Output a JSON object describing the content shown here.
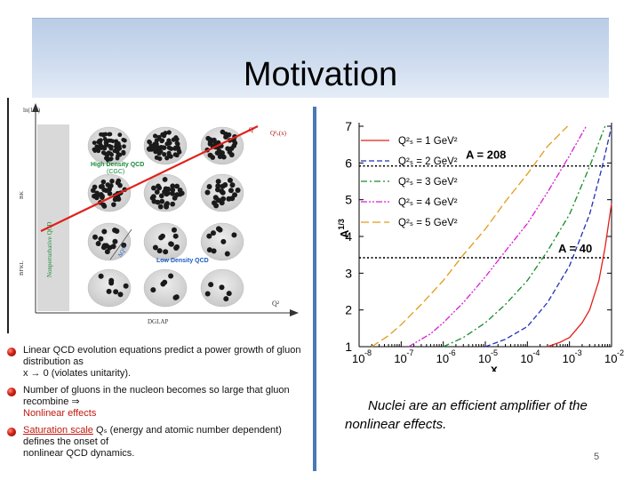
{
  "slide": {
    "title": "Motivation",
    "page_number": "5",
    "note_line1": "Nuclei are an efficient amplifier of the",
    "note_line2": "nonlinear effects.",
    "accent_color": "#4a78b8"
  },
  "left_figure": {
    "y_axis_label": "ln(1/x)",
    "x_axis_label": "Q²",
    "side_labels": [
      "BK",
      "BFKL"
    ],
    "bottom_label": "DGLAP",
    "qs_label": "Q²ₛ(x)",
    "nonpert_label": "Nonperturbative QCD",
    "high_density_label_1": "High Density QCD",
    "high_density_label_2": "(CGC)",
    "low_density_label": "Low Density QCD",
    "arrow_label": "ΔQ²/²",
    "q_label": "Q"
  },
  "bullets": [
    {
      "part1": "Linear QCD evolution equations predict a power growth of gluon distribution as",
      "part2": "x → 0",
      "part3": " (violates unitarity)."
    },
    {
      "part1": "Number of gluons in the nucleon becomes so large that gluon recombine ⇒",
      "part2": "Nonlinear effects"
    },
    {
      "part1": "Saturation scale",
      "part2": " Qₛ (energy and atomic number dependent) defines the onset of",
      "part3": "nonlinear QCD dynamics."
    }
  ],
  "chart_data": {
    "type": "line",
    "xscale": "log",
    "xlabel": "x",
    "ylabel": "A^1/3",
    "xlim": [
      1e-08,
      0.01
    ],
    "ylim": [
      1,
      7
    ],
    "x_tick_labels": [
      "10",
      "10",
      "10",
      "10",
      "10",
      "10",
      "10"
    ],
    "x_tick_exponents": [
      "-8",
      "-7",
      "-6",
      "-5",
      "-4",
      "-3",
      "-2"
    ],
    "y_tick_labels": [
      "1",
      "2",
      "3",
      "4",
      "5",
      "6",
      "7"
    ],
    "reference_lines": [
      {
        "label": "A = 208",
        "y": 5.92
      },
      {
        "label": "A = 40",
        "y": 3.42
      }
    ],
    "series": [
      {
        "name": "Q²ₛ = 1 GeV²",
        "color": "#e0201a",
        "dash": "solid",
        "x": [
          0.0003,
          0.0006,
          0.001,
          0.002,
          0.003,
          0.005,
          0.007,
          0.01
        ],
        "y": [
          1.0,
          1.12,
          1.25,
          1.65,
          2.0,
          2.8,
          3.7,
          4.9
        ]
      },
      {
        "name": "Q²ₛ = 2 GeV²",
        "color": "#2330b8",
        "dash": "dashed",
        "x": [
          1e-05,
          3e-05,
          0.0001,
          0.0003,
          0.001,
          0.003,
          0.006,
          0.01
        ],
        "y": [
          1.0,
          1.2,
          1.55,
          2.2,
          3.2,
          4.6,
          5.9,
          7.0
        ]
      },
      {
        "name": "Q²ₛ = 3 GeV²",
        "color": "#1a8c2a",
        "dash": "dashdot",
        "x": [
          1e-06,
          3e-06,
          1e-05,
          3e-05,
          0.0001,
          0.0003,
          0.001,
          0.003,
          0.007
        ],
        "y": [
          1.0,
          1.25,
          1.65,
          2.15,
          2.8,
          3.6,
          4.6,
          5.9,
          7.0
        ]
      },
      {
        "name": "Q²ₛ = 4 GeV²",
        "color": "#d61fd6",
        "dash": "dashdotdot",
        "x": [
          1.5e-07,
          5e-07,
          1e-06,
          3e-06,
          1e-05,
          3e-05,
          0.0001,
          0.0003,
          0.001,
          0.0025
        ],
        "y": [
          1.0,
          1.35,
          1.65,
          2.2,
          2.9,
          3.6,
          4.35,
          5.2,
          6.2,
          7.0
        ]
      },
      {
        "name": "Q²ₛ = 5 GeV²",
        "color": "#e39a1a",
        "dash": "longdash",
        "x": [
          2e-08,
          5e-08,
          1e-07,
          3e-07,
          1e-06,
          3e-06,
          1e-05,
          3e-05,
          0.0001,
          0.0003,
          0.0009
        ],
        "y": [
          1.0,
          1.3,
          1.6,
          2.15,
          2.8,
          3.5,
          4.2,
          4.95,
          5.7,
          6.45,
          7.0
        ]
      }
    ]
  }
}
